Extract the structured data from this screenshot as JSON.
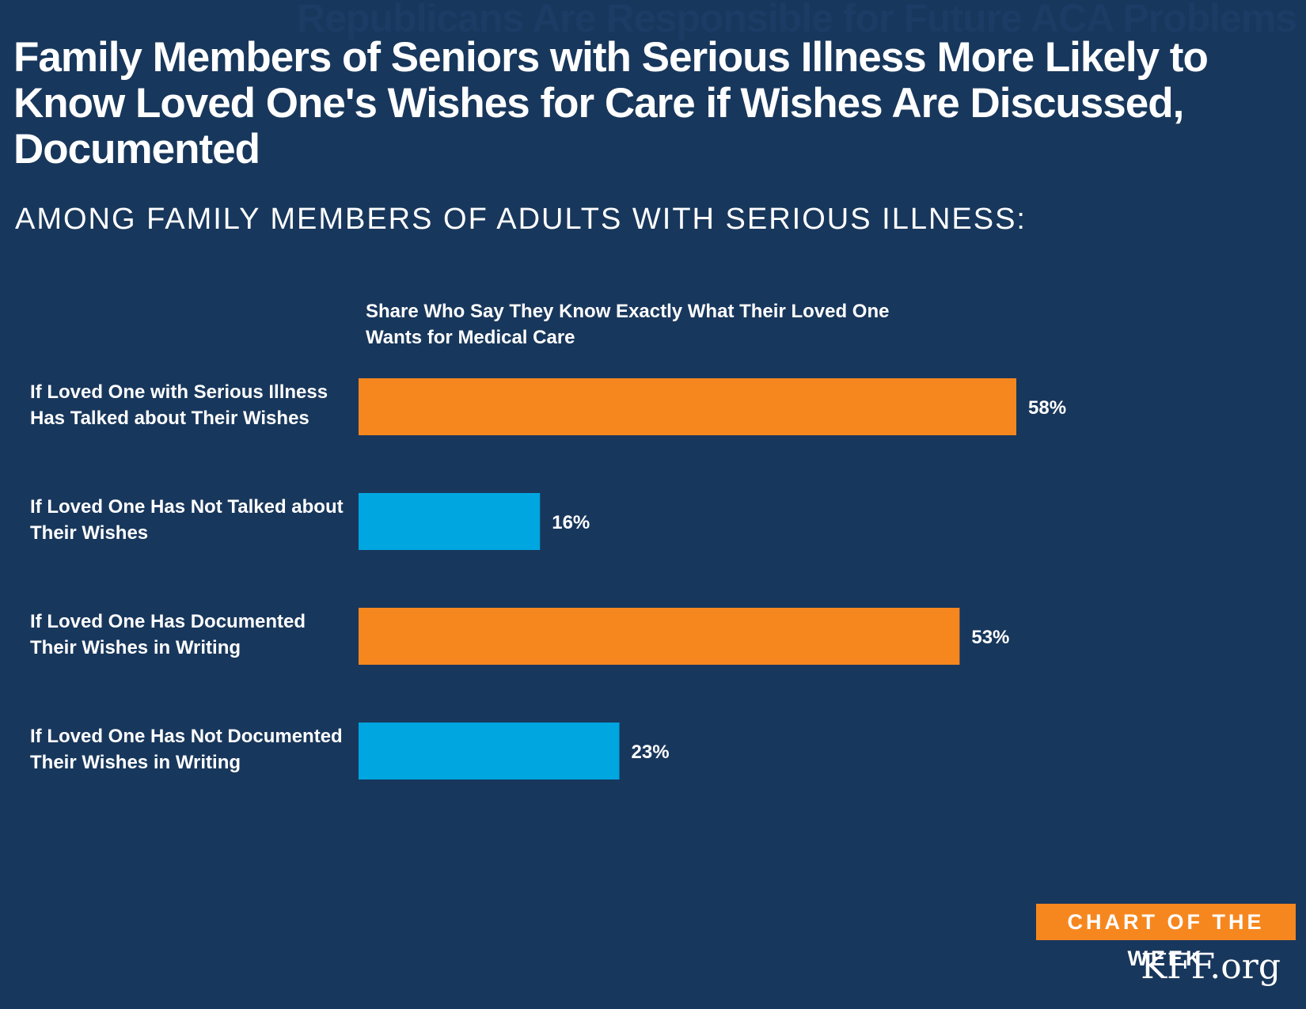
{
  "header": {
    "ghost_title": "Republicans Are Responsible for Future ACA Problems",
    "title": "Family Members of Seniors with Serious Illness More Likely to Know Loved One's Wishes for Care if Wishes Are Discussed, Documented",
    "subtitle": "AMONG FAMILY MEMBERS OF ADULTS WITH SERIOUS ILLNESS:"
  },
  "footer": {
    "badge": "CHART OF THE WEEK",
    "source": "KFF.org"
  },
  "colors": {
    "background": "#18375c",
    "orange": "#f6871f",
    "blue": "#00a6e0",
    "text": "#ffffff"
  },
  "chart_data": {
    "type": "bar",
    "orientation": "horizontal",
    "title": "Share Who Say They Know Exactly What Their Loved One Wants for Medical Care",
    "xlim": [
      0,
      60
    ],
    "grid": false,
    "legend": "none",
    "value_suffix": "%",
    "categories": [
      "If Loved One with Serious Illness Has Talked about Their Wishes",
      "If Loved One Has Not Talked about Their Wishes",
      "If Loved One Has Documented Their Wishes in Writing",
      "If Loved One Has Not Documented Their Wishes in Writing"
    ],
    "category_lines": [
      [
        "If Loved One with Serious Illness",
        "Has Talked about Their Wishes"
      ],
      [
        "If Loved One Has Not Talked about",
        "Their Wishes"
      ],
      [
        "If Loved One Has Documented",
        "Their Wishes in Writing"
      ],
      [
        "If Loved One Has Not Documented",
        "Their Wishes in Writing"
      ]
    ],
    "values": [
      58,
      16,
      53,
      23
    ],
    "value_labels": [
      "58%",
      "16%",
      "53%",
      "23%"
    ],
    "bar_colors": [
      "#f6871f",
      "#00a6e0",
      "#f6871f",
      "#00a6e0"
    ]
  }
}
